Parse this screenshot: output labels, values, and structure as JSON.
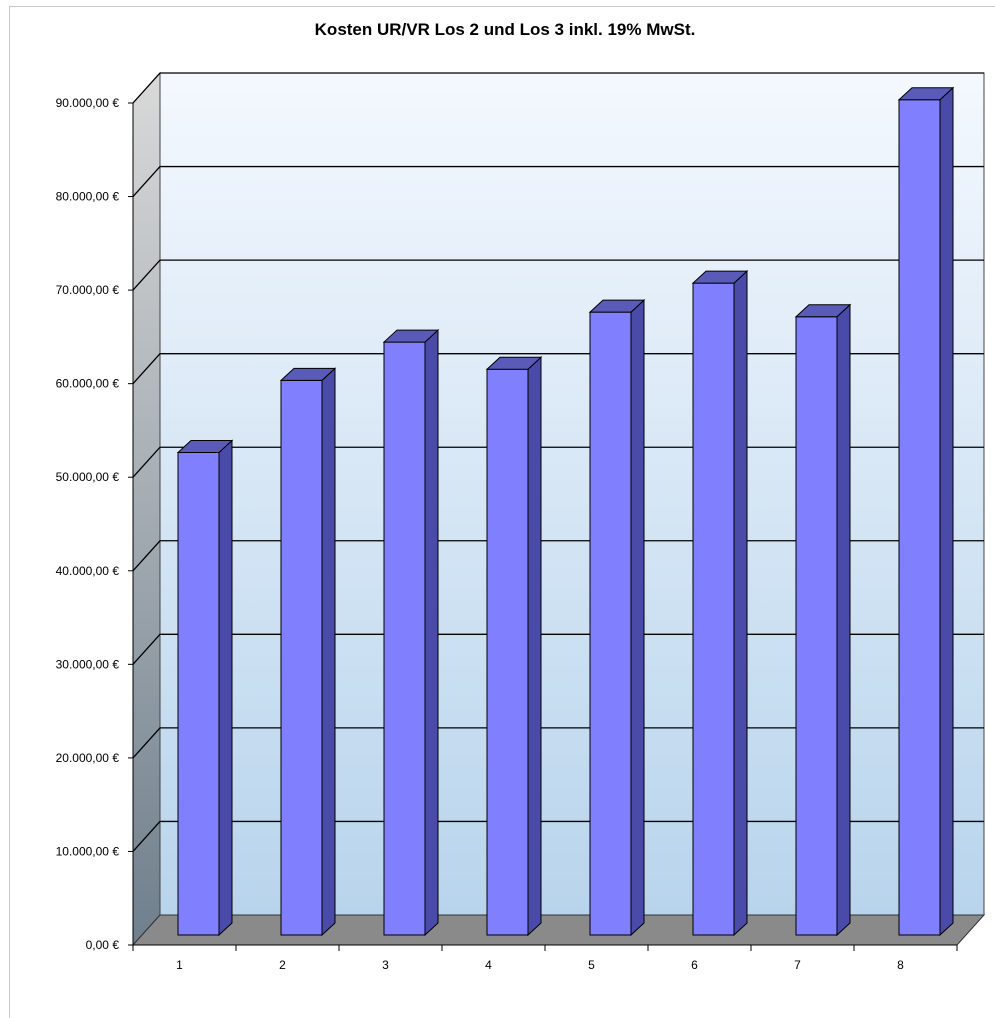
{
  "chart_data": {
    "type": "bar",
    "title": "Kosten UR/VR Los 2 und Los 3 inkl. 19% MwSt.",
    "categories": [
      "1",
      "2",
      "3",
      "4",
      "5",
      "6",
      "7",
      "8"
    ],
    "values": [
      51300,
      59000,
      63100,
      60200,
      66300,
      69400,
      65800,
      89000
    ],
    "ylim": [
      0,
      90000
    ],
    "y_ticks": [
      0,
      10000,
      20000,
      30000,
      40000,
      50000,
      60000,
      70000,
      80000,
      90000
    ],
    "y_tick_labels": [
      "0,00 €",
      "10.000,00 €",
      "20.000,00 €",
      "30.000,00 €",
      "40.000,00 €",
      "50.000,00 €",
      "60.000,00 €",
      "70.000,00 €",
      "80.000,00 €",
      "90.000,00 €"
    ],
    "xlabel": "",
    "ylabel": "",
    "grid": true,
    "legend": false,
    "style": "3d-column",
    "colors": {
      "bar_front": "#8080ff",
      "bar_side": "#4a4aa8",
      "bar_top": "#5a5ab8",
      "bar_outline": "#000000",
      "floor": "#8a8a8a",
      "wall_top": "#f4f8fe",
      "wall_bottom": "#b8d4ec",
      "side_wall_top": "#d9d9d9",
      "side_wall_bottom": "#6f7f8c",
      "gridline": "#000000"
    }
  }
}
